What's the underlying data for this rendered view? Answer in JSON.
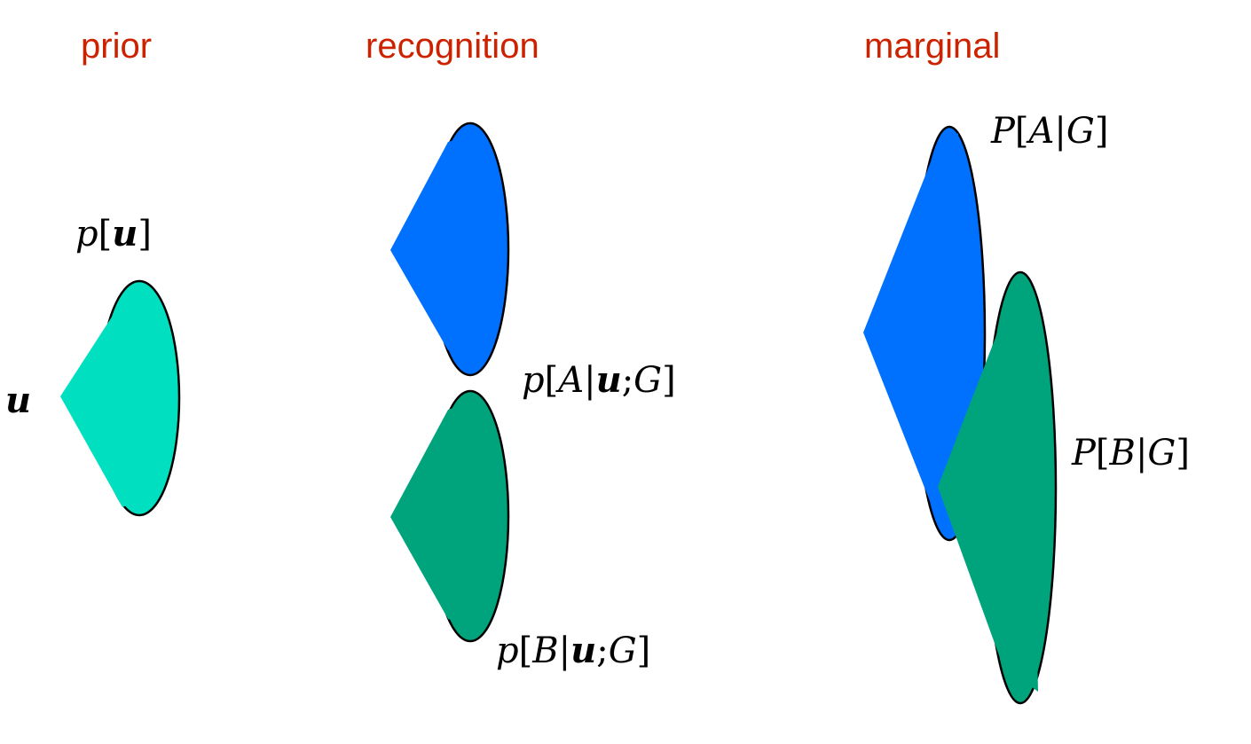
{
  "headings": {
    "prior": "prior",
    "recognition": "recognition",
    "marginal": "marginal"
  },
  "labels": {
    "u": "u",
    "p_u": {
      "p": "p",
      "open": "[",
      "u": "u",
      "close": "]"
    },
    "p_A_uG": {
      "p": "p",
      "open": "[",
      "A": "A",
      "bar": "|",
      "u": "u",
      "semi": ";",
      "G": "G",
      "close": "]"
    },
    "p_B_uG": {
      "p": "p",
      "open": "[",
      "B": "B",
      "bar": "|",
      "u": "u",
      "semi": ";",
      "G": "G",
      "close": "]"
    },
    "P_A_G": {
      "P": "P",
      "open": "[",
      "A": "A",
      "bar": "|",
      "G": "G",
      "close": "]"
    },
    "P_B_G": {
      "P": "P",
      "open": "[",
      "B": "B",
      "bar": "|",
      "G": "G",
      "close": "]"
    }
  },
  "colors": {
    "heading": "#cc2200",
    "prior_fill": "#00e0c0",
    "A_fill": "#0070ff",
    "B_fill": "#00a47c",
    "outline": "#000000"
  }
}
